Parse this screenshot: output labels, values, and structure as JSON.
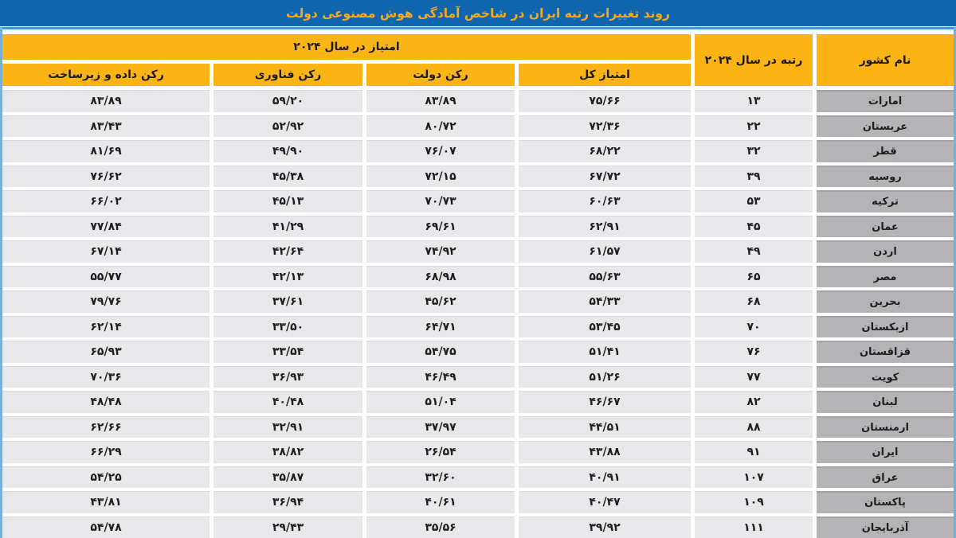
{
  "title": "روند تغییرات رتبه ایران در شاخص آمادگی هوش مصنوعی دولت",
  "colors": {
    "banner_blue": "#1066ae",
    "accent_light_blue": "#4e92ca",
    "edge_light_blue": "#7aaed7",
    "header_yellow": "#fcb415",
    "title_orange": "#f9a91e",
    "row_gray": "#e8e8ea",
    "country_gray": "#b4b4b6",
    "text_dark": "#1e1e1e"
  },
  "table": {
    "headers": {
      "country": "نام کشور",
      "rank_2024": "رتبه در سال ۲۰۲۴",
      "score_2024_group": "امتیاز در سال ۲۰۲۴",
      "total_score": "امتیاز کل",
      "gov_pillar": "رکن دولت",
      "tech_pillar": "رکن فناوری",
      "data_infra_pillar": "رکن داده و زیرساخت"
    },
    "rows": [
      {
        "country": "امارات",
        "rank": "۱۳",
        "total": "۷۵/۶۶",
        "gov": "۸۳/۸۹",
        "tech": "۵۹/۲۰",
        "data_infra": "۸۳/۸۹"
      },
      {
        "country": "عربستان",
        "rank": "۲۲",
        "total": "۷۲/۳۶",
        "gov": "۸۰/۷۲",
        "tech": "۵۲/۹۲",
        "data_infra": "۸۳/۴۳"
      },
      {
        "country": "قطر",
        "rank": "۳۲",
        "total": "۶۸/۲۲",
        "gov": "۷۶/۰۷",
        "tech": "۴۹/۹۰",
        "data_infra": "۸۱/۶۹"
      },
      {
        "country": "روسیه",
        "rank": "۳۹",
        "total": "۶۷/۷۲",
        "gov": "۷۲/۱۵",
        "tech": "۴۵/۳۸",
        "data_infra": "۷۶/۶۲"
      },
      {
        "country": "ترکیه",
        "rank": "۵۳",
        "total": "۶۰/۶۳",
        "gov": "۷۰/۷۳",
        "tech": "۴۵/۱۳",
        "data_infra": "۶۶/۰۲"
      },
      {
        "country": "عمان",
        "rank": "۴۵",
        "total": "۶۲/۹۱",
        "gov": "۶۹/۶۱",
        "tech": "۴۱/۲۹",
        "data_infra": "۷۷/۸۴"
      },
      {
        "country": "اردن",
        "rank": "۴۹",
        "total": "۶۱/۵۷",
        "gov": "۷۴/۹۲",
        "tech": "۴۲/۶۴",
        "data_infra": "۶۷/۱۴"
      },
      {
        "country": "مصر",
        "rank": "۶۵",
        "total": "۵۵/۶۳",
        "gov": "۶۸/۹۸",
        "tech": "۴۲/۱۳",
        "data_infra": "۵۵/۷۷"
      },
      {
        "country": "بحرین",
        "rank": "۶۸",
        "total": "۵۴/۳۳",
        "gov": "۴۵/۶۲",
        "tech": "۳۷/۶۱",
        "data_infra": "۷۹/۷۶"
      },
      {
        "country": "ازبکستان",
        "rank": "۷۰",
        "total": "۵۳/۴۵",
        "gov": "۶۴/۷۱",
        "tech": "۳۳/۵۰",
        "data_infra": "۶۲/۱۴"
      },
      {
        "country": "قزاقستان",
        "rank": "۷۶",
        "total": "۵۱/۴۱",
        "gov": "۵۴/۷۵",
        "tech": "۳۳/۵۴",
        "data_infra": "۶۵/۹۳"
      },
      {
        "country": "کویت",
        "rank": "۷۷",
        "total": "۵۱/۲۶",
        "gov": "۴۶/۴۹",
        "tech": "۳۶/۹۳",
        "data_infra": "۷۰/۳۶"
      },
      {
        "country": "لبنان",
        "rank": "۸۲",
        "total": "۴۶/۶۷",
        "gov": "۵۱/۰۴",
        "tech": "۴۰/۴۸",
        "data_infra": "۴۸/۴۸"
      },
      {
        "country": "ارمنستان",
        "rank": "۸۸",
        "total": "۴۴/۵۱",
        "gov": "۳۷/۹۷",
        "tech": "۳۲/۹۱",
        "data_infra": "۶۲/۶۶"
      },
      {
        "country": "ایران",
        "rank": "۹۱",
        "total": "۴۳/۸۸",
        "gov": "۲۶/۵۴",
        "tech": "۳۸/۸۲",
        "data_infra": "۶۶/۲۹"
      },
      {
        "country": "عراق",
        "rank": "۱۰۷",
        "total": "۴۰/۹۱",
        "gov": "۳۲/۶۰",
        "tech": "۳۵/۸۷",
        "data_infra": "۵۴/۲۵"
      },
      {
        "country": "پاکستان",
        "rank": "۱۰۹",
        "total": "۴۰/۴۷",
        "gov": "۴۰/۶۱",
        "tech": "۳۶/۹۴",
        "data_infra": "۴۳/۸۱"
      },
      {
        "country": "آذربایجان",
        "rank": "۱۱۱",
        "total": "۳۹/۹۲",
        "gov": "۳۵/۵۶",
        "tech": "۲۹/۴۳",
        "data_infra": "۵۴/۷۸"
      }
    ]
  },
  "chart_data": {
    "type": "table",
    "title": "روند تغییرات رتبه ایران در شاخص آمادگی هوش مصنوعی دولت",
    "column_group": "امتیاز در سال ۲۰۲۴",
    "columns": [
      "نام کشور",
      "رتبه در سال ۲۰۲۴",
      "امتیاز کل",
      "رکن دولت",
      "رکن فناوری",
      "رکن داده و زیرساخت"
    ],
    "rows": [
      [
        "امارات",
        13,
        75.66,
        83.89,
        59.2,
        83.89
      ],
      [
        "عربستان",
        22,
        72.36,
        80.72,
        52.92,
        83.43
      ],
      [
        "قطر",
        32,
        68.22,
        76.07,
        49.9,
        81.69
      ],
      [
        "روسیه",
        39,
        67.72,
        72.15,
        45.38,
        76.62
      ],
      [
        "ترکیه",
        53,
        60.63,
        70.73,
        45.13,
        66.02
      ],
      [
        "عمان",
        45,
        62.91,
        69.61,
        41.29,
        77.84
      ],
      [
        "اردن",
        49,
        61.57,
        74.92,
        42.64,
        67.14
      ],
      [
        "مصر",
        65,
        55.63,
        68.98,
        42.13,
        55.77
      ],
      [
        "بحرین",
        68,
        54.33,
        45.62,
        37.61,
        79.76
      ],
      [
        "ازبکستان",
        70,
        53.45,
        64.71,
        33.5,
        62.14
      ],
      [
        "قزاقستان",
        76,
        51.41,
        54.75,
        33.54,
        65.93
      ],
      [
        "کویت",
        77,
        51.26,
        46.49,
        36.93,
        70.36
      ],
      [
        "لبنان",
        82,
        46.67,
        51.04,
        40.48,
        48.48
      ],
      [
        "ارمنستان",
        88,
        44.51,
        37.97,
        32.91,
        62.66
      ],
      [
        "ایران",
        91,
        43.88,
        26.54,
        38.82,
        66.29
      ],
      [
        "عراق",
        107,
        40.91,
        32.6,
        35.87,
        54.25
      ],
      [
        "پاکستان",
        109,
        40.47,
        40.61,
        36.94,
        43.81
      ],
      [
        "آذربایجان",
        111,
        39.92,
        35.56,
        29.43,
        54.78
      ]
    ]
  }
}
